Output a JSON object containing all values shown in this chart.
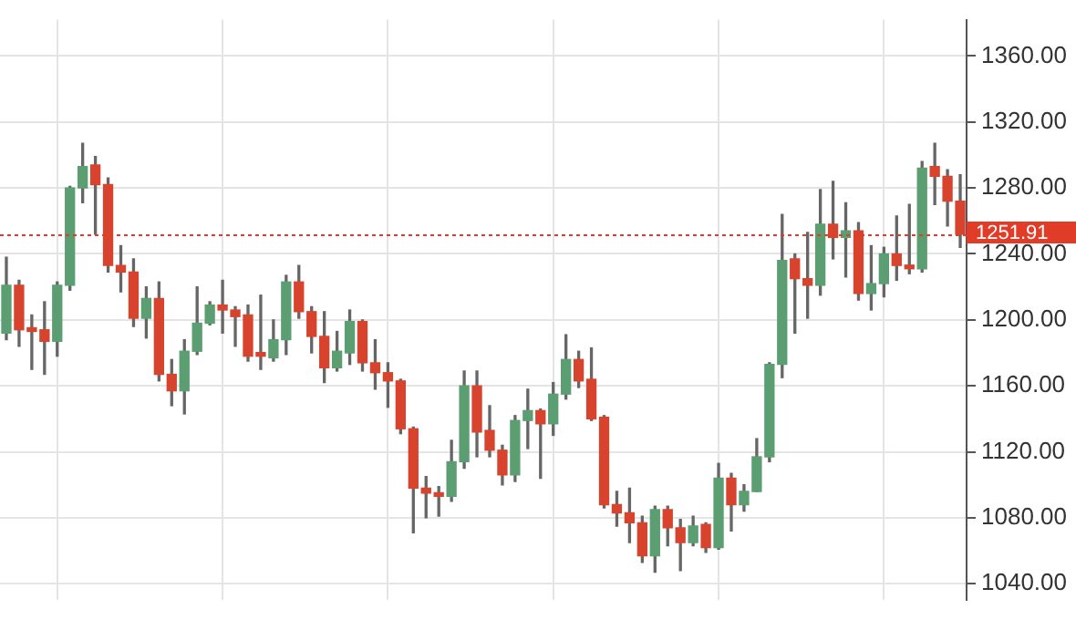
{
  "chart_data": {
    "type": "candlestick",
    "categories": [
      null,
      null,
      null,
      null,
      null,
      null,
      null,
      null,
      null,
      null,
      null,
      null,
      null,
      null,
      null,
      null,
      null,
      null,
      null,
      null,
      null,
      null,
      null,
      null,
      null,
      null,
      null,
      null,
      null,
      null,
      null,
      null,
      null,
      null,
      null,
      null,
      null,
      null,
      null,
      null,
      null,
      null,
      null,
      null,
      null,
      null,
      null,
      null,
      null,
      null,
      null,
      null,
      null,
      null,
      null,
      null,
      null,
      null,
      null,
      null,
      null,
      null,
      null,
      null,
      null,
      null,
      null,
      null,
      null,
      null,
      null,
      null,
      null,
      null,
      null,
      null
    ],
    "ohlc": [
      [
        1192,
        1238,
        1188,
        1221
      ],
      [
        1221,
        1224,
        1184,
        1194
      ],
      [
        1194,
        1203,
        1170,
        1193
      ],
      [
        1194,
        1211,
        1167,
        1187
      ],
      [
        1187,
        1223,
        1178,
        1221
      ],
      [
        1221,
        1281,
        1218,
        1280
      ],
      [
        1280,
        1307,
        1271,
        1293
      ],
      [
        1294,
        1299,
        1252,
        1282
      ],
      [
        1282,
        1286,
        1229,
        1233
      ],
      [
        1233,
        1245,
        1217,
        1229
      ],
      [
        1229,
        1237,
        1196,
        1201
      ],
      [
        1201,
        1220,
        1189,
        1213
      ],
      [
        1213,
        1223,
        1163,
        1167
      ],
      [
        1167,
        1176,
        1148,
        1157
      ],
      [
        1157,
        1188,
        1143,
        1181
      ],
      [
        1181,
        1220,
        1179,
        1198
      ],
      [
        1198,
        1211,
        1197,
        1209
      ],
      [
        1209,
        1224,
        1192,
        1206
      ],
      [
        1206,
        1208,
        1184,
        1202
      ],
      [
        1203,
        1209,
        1175,
        1178
      ],
      [
        1179,
        1215,
        1170,
        1178
      ],
      [
        1177,
        1200,
        1175,
        1188
      ],
      [
        1188,
        1227,
        1179,
        1223
      ],
      [
        1223,
        1233,
        1201,
        1205
      ],
      [
        1205,
        1208,
        1180,
        1190
      ],
      [
        1190,
        1205,
        1162,
        1171
      ],
      [
        1171,
        1193,
        1169,
        1181
      ],
      [
        1180,
        1206,
        1173,
        1199
      ],
      [
        1199,
        1200,
        1169,
        1174
      ],
      [
        1174,
        1188,
        1158,
        1168
      ],
      [
        1168,
        1174,
        1147,
        1163
      ],
      [
        1163,
        1164,
        1131,
        1134
      ],
      [
        1134,
        1135,
        1071,
        1098
      ],
      [
        1098,
        1105,
        1080,
        1095
      ],
      [
        1095,
        1099,
        1081,
        1093
      ],
      [
        1093,
        1127,
        1090,
        1114
      ],
      [
        1114,
        1169,
        1110,
        1160
      ],
      [
        1160,
        1169,
        1117,
        1132
      ],
      [
        1133,
        1148,
        1117,
        1121
      ],
      [
        1121,
        1124,
        1100,
        1106
      ],
      [
        1106,
        1142,
        1102,
        1139
      ],
      [
        1139,
        1158,
        1122,
        1145
      ],
      [
        1145,
        1146,
        1104,
        1137
      ],
      [
        1137,
        1162,
        1130,
        1155
      ],
      [
        1155,
        1191,
        1152,
        1176
      ],
      [
        1176,
        1181,
        1159,
        1163
      ],
      [
        1164,
        1183,
        1139,
        1140
      ],
      [
        1141,
        1142,
        1086,
        1088
      ],
      [
        1088,
        1096,
        1075,
        1083
      ],
      [
        1083,
        1098,
        1065,
        1077
      ],
      [
        1077,
        1081,
        1053,
        1057
      ],
      [
        1057,
        1087,
        1047,
        1085
      ],
      [
        1085,
        1087,
        1063,
        1074
      ],
      [
        1074,
        1079,
        1048,
        1065
      ],
      [
        1065,
        1081,
        1063,
        1075
      ],
      [
        1076,
        1077,
        1059,
        1062
      ],
      [
        1062,
        1113,
        1061,
        1104
      ],
      [
        1104,
        1107,
        1072,
        1088
      ],
      [
        1088,
        1100,
        1084,
        1096
      ],
      [
        1096,
        1128,
        1096,
        1117
      ],
      [
        1117,
        1174,
        1114,
        1173
      ],
      [
        1173,
        1264,
        1165,
        1236
      ],
      [
        1237,
        1240,
        1192,
        1225
      ],
      [
        1225,
        1253,
        1201,
        1221
      ],
      [
        1221,
        1279,
        1215,
        1258
      ],
      [
        1258,
        1284,
        1237,
        1250
      ],
      [
        1250,
        1271,
        1226,
        1254
      ],
      [
        1254,
        1259,
        1212,
        1216
      ],
      [
        1216,
        1245,
        1206,
        1222
      ],
      [
        1222,
        1244,
        1214,
        1240
      ],
      [
        1240,
        1263,
        1224,
        1233
      ],
      [
        1233,
        1270,
        1228,
        1231
      ],
      [
        1231,
        1296,
        1229,
        1292
      ],
      [
        1293,
        1307,
        1270,
        1287
      ],
      [
        1287,
        1291,
        1257,
        1272
      ],
      [
        1272,
        1288,
        1244,
        1252
      ]
    ],
    "colors": [
      "#5a9e72",
      "#d8432e",
      "#d8432e",
      "#d8432e",
      "#5a9e72",
      "#5a9e72",
      "#5a9e72",
      "#d8432e",
      "#d8432e",
      "#d8432e",
      "#d8432e",
      "#5a9e72",
      "#d8432e",
      "#d8432e",
      "#5a9e72",
      "#5a9e72",
      "#5a9e72",
      "#d8432e",
      "#d8432e",
      "#d8432e",
      "#d8432e",
      "#5a9e72",
      "#5a9e72",
      "#d8432e",
      "#d8432e",
      "#d8432e",
      "#5a9e72",
      "#5a9e72",
      "#d8432e",
      "#d8432e",
      "#d8432e",
      "#d8432e",
      "#d8432e",
      "#d8432e",
      "#d8432e",
      "#5a9e72",
      "#5a9e72",
      "#d8432e",
      "#d8432e",
      "#d8432e",
      "#5a9e72",
      "#5a9e72",
      "#d8432e",
      "#5a9e72",
      "#5a9e72",
      "#d8432e",
      "#d8432e",
      "#d8432e",
      "#d8432e",
      "#d8432e",
      "#d8432e",
      "#5a9e72",
      "#d8432e",
      "#d8432e",
      "#5a9e72",
      "#d8432e",
      "#5a9e72",
      "#d8432e",
      "#5a9e72",
      "#5a9e72",
      "#5a9e72",
      "#5a9e72",
      "#d8432e",
      "#d8432e",
      "#5a9e72",
      "#d8432e",
      "#5a9e72",
      "#d8432e",
      "#5a9e72",
      "#5a9e72",
      "#d8432e",
      "#d8432e",
      "#5a9e72",
      "#d8432e",
      "#d8432e",
      "#d8432e"
    ],
    "ylim": [
      1030,
      1382
    ],
    "yticks": [
      {
        "value": 1040,
        "label": "1040.00"
      },
      {
        "value": 1080,
        "label": "1080.00"
      },
      {
        "value": 1120,
        "label": "1120.00"
      },
      {
        "value": 1160,
        "label": "1160.00"
      },
      {
        "value": 1200,
        "label": "1200.00"
      },
      {
        "value": 1240,
        "label": "1240.00"
      },
      {
        "value": 1280,
        "label": "1280.00"
      },
      {
        "value": 1320,
        "label": "1320.00"
      },
      {
        "value": 1360,
        "label": "1360.00"
      }
    ],
    "ref_lines": [
      {
        "axis": "y",
        "value": 1251.91,
        "label": "1251.91",
        "color": "#e03c28",
        "line_style": "dotted"
      }
    ],
    "grid": true,
    "legend": false
  }
}
